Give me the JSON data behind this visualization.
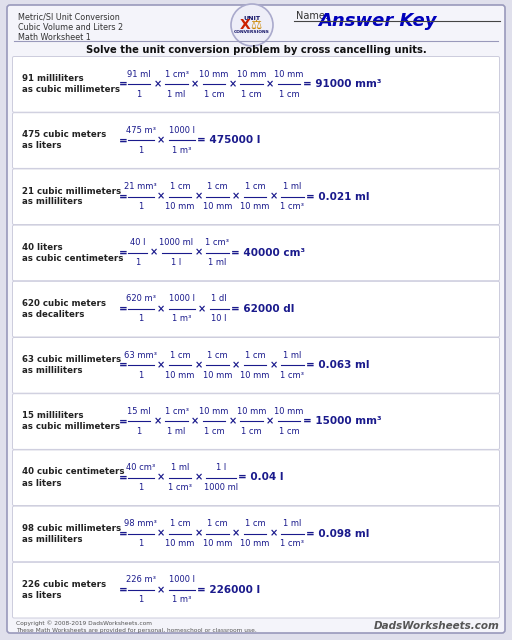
{
  "title_lines": [
    "Metric/SI Unit Conversion",
    "Cubic Volume and Liters 2",
    "Math Worksheet 1"
  ],
  "answer_key_text": "Answer Key",
  "name_label": "Name:",
  "instruction": "Solve the unit conversion problem by cross cancelling units.",
  "rows": [
    {
      "label1": "91 milliliters",
      "label2": "as cubic millimeters",
      "fracs": [
        [
          "91 ml",
          "1"
        ],
        [
          "1 cm³",
          "1 ml"
        ],
        [
          "10 mm",
          "1 cm"
        ],
        [
          "10 mm",
          "1 cm"
        ],
        [
          "10 mm",
          "1 cm"
        ]
      ],
      "result": "= 91000 mm³"
    },
    {
      "label1": "475 cubic meters",
      "label2": "as liters",
      "fracs": [
        [
          "475 m³",
          "1"
        ],
        [
          "1000 l",
          "1 m³"
        ]
      ],
      "result": "= 475000 l"
    },
    {
      "label1": "21 cubic millimeters",
      "label2": "as milliliters",
      "fracs": [
        [
          "21 mm³",
          "1"
        ],
        [
          "1 cm",
          "10 mm"
        ],
        [
          "1 cm",
          "10 mm"
        ],
        [
          "1 cm",
          "10 mm"
        ],
        [
          "1 ml",
          "1 cm³"
        ]
      ],
      "result": "= 0.021 ml"
    },
    {
      "label1": "40 liters",
      "label2": "as cubic centimeters",
      "fracs": [
        [
          "40 l",
          "1"
        ],
        [
          "1000 ml",
          "1 l"
        ],
        [
          "1 cm³",
          "1 ml"
        ]
      ],
      "result": "= 40000 cm³"
    },
    {
      "label1": "620 cubic meters",
      "label2": "as decaliters",
      "fracs": [
        [
          "620 m³",
          "1"
        ],
        [
          "1000 l",
          "1 m³"
        ],
        [
          "1 dl",
          "10 l"
        ]
      ],
      "result": "= 62000 dl"
    },
    {
      "label1": "63 cubic millimeters",
      "label2": "as milliliters",
      "fracs": [
        [
          "63 mm³",
          "1"
        ],
        [
          "1 cm",
          "10 mm"
        ],
        [
          "1 cm",
          "10 mm"
        ],
        [
          "1 cm",
          "10 mm"
        ],
        [
          "1 ml",
          "1 cm³"
        ]
      ],
      "result": "= 0.063 ml"
    },
    {
      "label1": "15 milliliters",
      "label2": "as cubic millimeters",
      "fracs": [
        [
          "15 ml",
          "1"
        ],
        [
          "1 cm³",
          "1 ml"
        ],
        [
          "10 mm",
          "1 cm"
        ],
        [
          "10 mm",
          "1 cm"
        ],
        [
          "10 mm",
          "1 cm"
        ]
      ],
      "result": "= 15000 mm³"
    },
    {
      "label1": "40 cubic centimeters",
      "label2": "as liters",
      "fracs": [
        [
          "40 cm³",
          "1"
        ],
        [
          "1 ml",
          "1 cm³"
        ],
        [
          "1 l",
          "1000 ml"
        ]
      ],
      "result": "= 0.04 l"
    },
    {
      "label1": "98 cubic millimeters",
      "label2": "as milliliters",
      "fracs": [
        [
          "98 mm³",
          "1"
        ],
        [
          "1 cm",
          "10 mm"
        ],
        [
          "1 cm",
          "10 mm"
        ],
        [
          "1 cm",
          "10 mm"
        ],
        [
          "1 ml",
          "1 cm³"
        ]
      ],
      "result": "= 0.098 ml"
    },
    {
      "label1": "226 cubic meters",
      "label2": "as liters",
      "fracs": [
        [
          "226 m³",
          "1"
        ],
        [
          "1000 l",
          "1 m³"
        ]
      ],
      "result": "= 226000 l"
    }
  ],
  "footer_left": "Copyright © 2008-2019 DadsWorksheets.com\nThese Math Worksheets are provided for personal, homeschool or classroom use.",
  "footer_right": "DadsWorksheets.com",
  "bg_outer": "#e0e0ec",
  "bg_panel": "#f4f4fa",
  "row_bg": "#ffffff",
  "row_border": "#ccccdd",
  "blue": "#1a1a8c",
  "dark": "#222222",
  "gray": "#555555",
  "header_sep": "#9999bb"
}
